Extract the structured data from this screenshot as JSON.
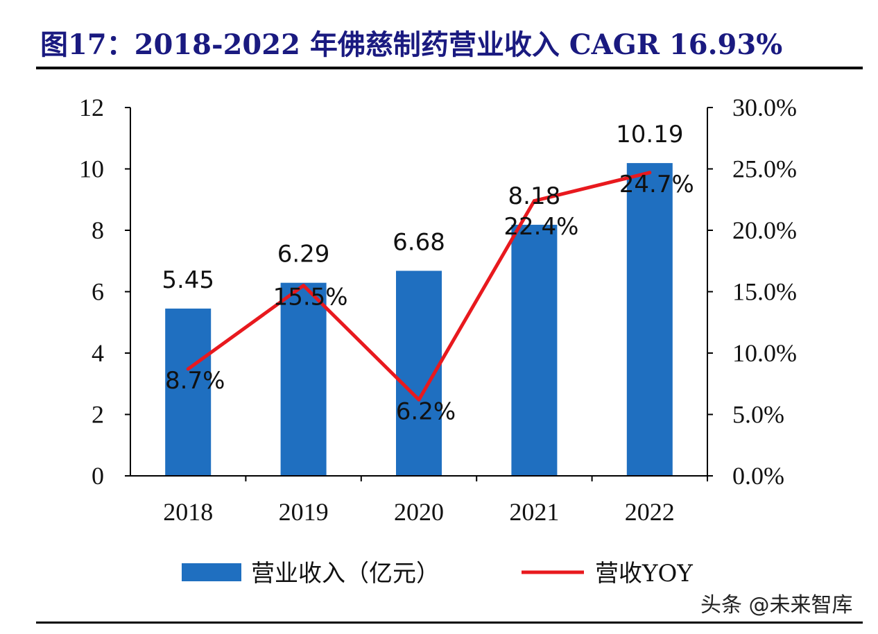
{
  "chart_data": {
    "type": "bar+line",
    "title": "图17：2018-2022 年佛慈制药营业收入 CAGR 16.93%",
    "categories": [
      "2018",
      "2019",
      "2020",
      "2021",
      "2022"
    ],
    "series": [
      {
        "name": "营业收入（亿元）",
        "type": "bar",
        "axis": "left",
        "values": [
          5.45,
          6.29,
          6.68,
          8.18,
          10.19
        ],
        "labels": [
          "5.45",
          "6.29",
          "6.68",
          "8.18",
          "10.19"
        ],
        "color": "#1f6fc0"
      },
      {
        "name": "营收YOY",
        "type": "line",
        "axis": "right",
        "values": [
          8.7,
          15.5,
          6.2,
          22.4,
          24.7
        ],
        "labels": [
          "8.7%",
          "15.5%",
          "6.2%",
          "22.4%",
          "24.7%"
        ],
        "color": "#e8191e"
      }
    ],
    "left_axis": {
      "ylim": [
        0,
        12
      ],
      "ticks": [
        "0",
        "2",
        "4",
        "6",
        "8",
        "10",
        "12"
      ]
    },
    "right_axis": {
      "ylim": [
        0,
        30
      ],
      "ticks": [
        "0.0%",
        "5.0%",
        "10.0%",
        "15.0%",
        "20.0%",
        "25.0%",
        "30.0%"
      ]
    },
    "grid": false,
    "legend_placement": "bottom"
  },
  "watermark": "头条 @未来智库"
}
